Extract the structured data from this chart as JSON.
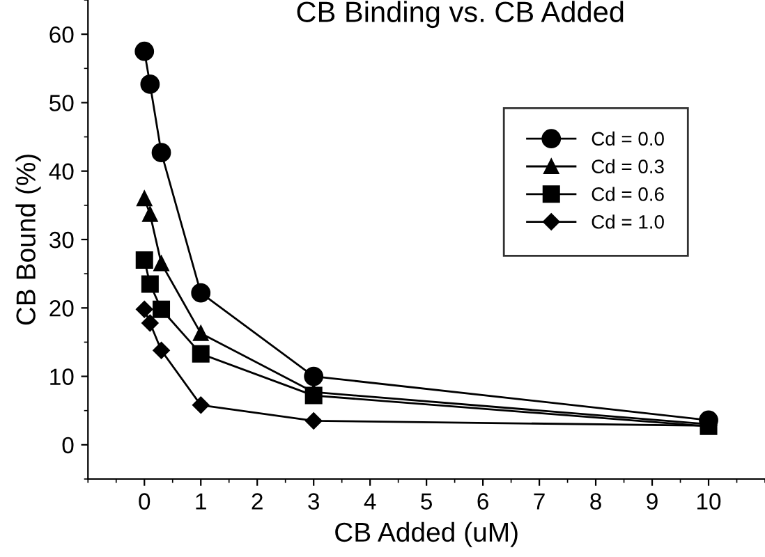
{
  "chart_data": {
    "type": "line",
    "title": "CB Binding vs. CB Added",
    "xlabel": "CB Added (uM)",
    "ylabel": "CB Bound (%)",
    "x": [
      0,
      0.1,
      0.3,
      1,
      3,
      10
    ],
    "series": [
      {
        "name": "Cd = 0.0",
        "color": "#000000",
        "marker": "circle",
        "values": [
          57.5,
          52.7,
          42.7,
          22.2,
          10,
          3.6
        ]
      },
      {
        "name": "Cd = 0.3",
        "color": "#000000",
        "marker": "triangle",
        "values": [
          36,
          33.7,
          26.5,
          16.3,
          7.7,
          3.0
        ]
      },
      {
        "name": "Cd = 0.6",
        "color": "#000000",
        "marker": "square",
        "values": [
          27,
          23.5,
          19.8,
          13.3,
          7.2,
          2.7
        ]
      },
      {
        "name": "Cd = 1.0",
        "color": "#000000",
        "marker": "diamond",
        "values": [
          19.8,
          17.8,
          13.8,
          5.8,
          3.5,
          2.8
        ]
      }
    ],
    "xlim": [
      -1,
      11
    ],
    "xticks": [
      0,
      1,
      2,
      3,
      4,
      5,
      6,
      7,
      8,
      9,
      10
    ],
    "ylim": [
      -5,
      65
    ],
    "yticks": [
      0,
      10,
      20,
      30,
      40,
      50,
      60
    ],
    "grid": false,
    "legend": "right",
    "line_style": "solid"
  }
}
